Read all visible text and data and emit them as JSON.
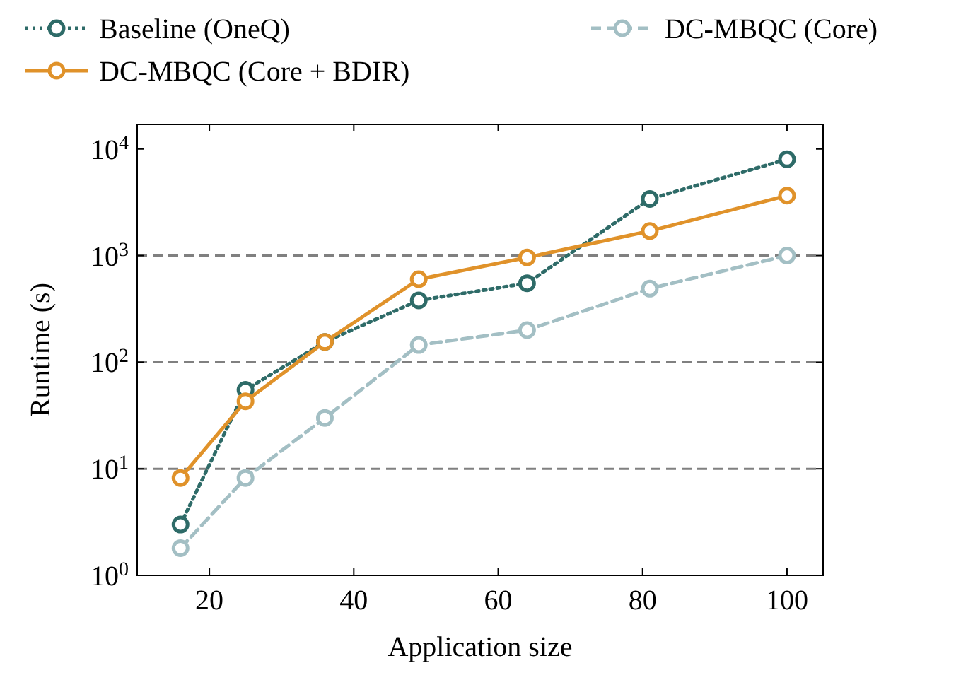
{
  "chart_data": {
    "type": "line",
    "xlabel": "Application size",
    "ylabel": "Runtime (s)",
    "x": [
      16,
      25,
      36,
      49,
      64,
      81,
      100
    ],
    "series": [
      {
        "name": "Baseline (OneQ)",
        "color": "#2e6b68",
        "line_style": "dotted",
        "values": [
          3,
          55,
          155,
          380,
          550,
          3400,
          8000
        ]
      },
      {
        "name": "DC-MBQC (Core + BDIR)",
        "color": "#e0922a",
        "line_style": "solid",
        "values": [
          8.2,
          43,
          155,
          600,
          960,
          1700,
          3650
        ]
      },
      {
        "name": "DC-MBQC (Core)",
        "color": "#a3bfc4",
        "line_style": "dashed",
        "values": [
          1.8,
          8.2,
          30,
          145,
          200,
          490,
          1000
        ]
      }
    ],
    "xlim": [
      10,
      105
    ],
    "xticks": [
      20,
      40,
      60,
      80,
      100
    ],
    "ylim": [
      1,
      17000
    ],
    "log": true,
    "yticks": [
      {
        "value": 1,
        "label": "10$^{0}$"
      },
      {
        "value": 10,
        "label": "10$^{1}$"
      },
      {
        "value": 100,
        "label": "10$^{2}$"
      },
      {
        "value": 1000,
        "label": "10$^{3}$"
      },
      {
        "value": 10000,
        "label": "10$^{4}$"
      }
    ],
    "ref_lines": [
      {
        "axis": "y",
        "value": 10,
        "color": "#808080",
        "line_style": "dashed"
      },
      {
        "axis": "y",
        "value": 100,
        "color": "#808080",
        "line_style": "dashed"
      },
      {
        "axis": "y",
        "value": 1000,
        "color": "#808080",
        "line_style": "dashed"
      }
    ],
    "marker": "circle",
    "legend": "top"
  }
}
